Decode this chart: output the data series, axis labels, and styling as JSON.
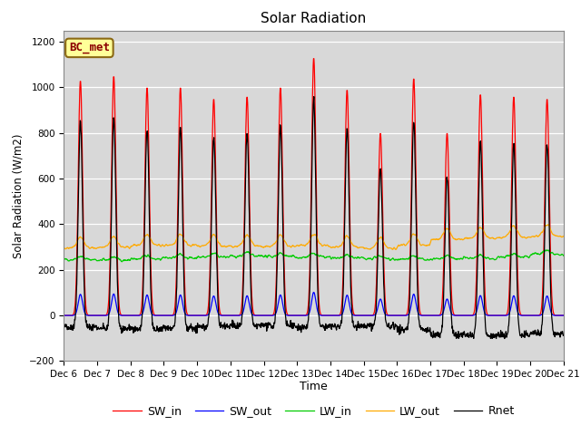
{
  "title": "Solar Radiation",
  "ylabel": "Solar Radiation (W/m2)",
  "xlabel": "Time",
  "ylim": [
    -200,
    1250
  ],
  "yticks": [
    -200,
    0,
    200,
    400,
    600,
    800,
    1000,
    1200
  ],
  "annotation": "BC_met",
  "background_color": "#d8d8d8",
  "colors": {
    "SW_in": "#ff0000",
    "SW_out": "#0000ff",
    "LW_in": "#00cc00",
    "LW_out": "#ffaa00",
    "Rnet": "#000000"
  },
  "n_days": 15,
  "start_day": 6,
  "points_per_day": 96,
  "sw_peaks": [
    1030,
    1050,
    1000,
    1000,
    950,
    960,
    1000,
    1130,
    990,
    800,
    1040,
    800,
    970,
    960,
    950
  ],
  "lw_in_base": [
    245,
    242,
    248,
    252,
    256,
    260,
    258,
    256,
    252,
    248,
    246,
    248,
    250,
    256,
    268
  ],
  "lw_out_base": [
    295,
    298,
    308,
    308,
    303,
    303,
    303,
    306,
    298,
    293,
    308,
    333,
    338,
    343,
    348
  ]
}
